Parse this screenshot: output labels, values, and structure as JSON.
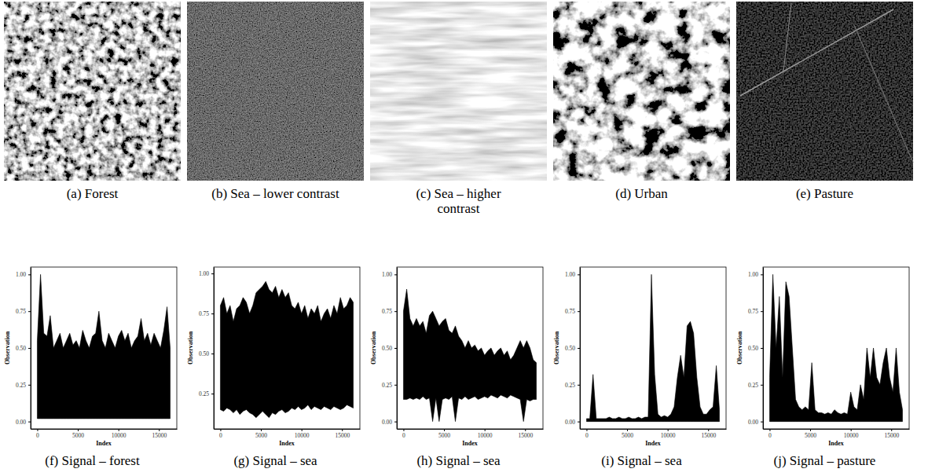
{
  "images": [
    {
      "caption": "(a) Forest"
    },
    {
      "caption": "(b) Sea – lower contrast"
    },
    {
      "caption": "(c) Sea – higher contrast"
    },
    {
      "caption": "(d) Urban"
    },
    {
      "caption": "(e) Pasture"
    }
  ],
  "chart_data": [
    {
      "type": "area",
      "title": "(f) Signal – forest",
      "x_label": "Index",
      "y_label": "Observation",
      "grid": false,
      "x": [
        0,
        400,
        800,
        1200,
        1600,
        2000,
        2400,
        2800,
        3200,
        3600,
        4000,
        4400,
        4800,
        5200,
        5600,
        6000,
        6400,
        6800,
        7200,
        7600,
        8000,
        8400,
        8800,
        9200,
        9600,
        10000,
        10400,
        10800,
        11200,
        11600,
        12000,
        12400,
        12800,
        13200,
        13600,
        14000,
        14400,
        14800,
        15200,
        15600,
        16000,
        16384
      ],
      "values": [
        0.55,
        1.0,
        0.6,
        0.58,
        0.72,
        0.5,
        0.55,
        0.6,
        0.5,
        0.55,
        0.6,
        0.52,
        0.55,
        0.5,
        0.62,
        0.55,
        0.5,
        0.58,
        0.6,
        0.75,
        0.55,
        0.5,
        0.6,
        0.55,
        0.5,
        0.58,
        0.62,
        0.55,
        0.6,
        0.5,
        0.55,
        0.58,
        0.7,
        0.55,
        0.6,
        0.52,
        0.6,
        0.55,
        0.5,
        0.62,
        0.78,
        0.5
      ],
      "lower": [
        0.02,
        0.02,
        0.02,
        0.02,
        0.02,
        0.02,
        0.02,
        0.02,
        0.02,
        0.02,
        0.02,
        0.02,
        0.02,
        0.02,
        0.02,
        0.02,
        0.02,
        0.02,
        0.02,
        0.02,
        0.02,
        0.02,
        0.02,
        0.02,
        0.02,
        0.02,
        0.02,
        0.02,
        0.02,
        0.02,
        0.02,
        0.02,
        0.02,
        0.02,
        0.02,
        0.02,
        0.02,
        0.02,
        0.02,
        0.02,
        0.02,
        0.02
      ],
      "xlim": [
        -819,
        17203
      ],
      "xticks": [
        0,
        5000,
        10000,
        15000
      ],
      "ylim": [
        -0.05,
        1.05
      ],
      "yticks": [
        {
          "value": 0,
          "label": "0.00"
        },
        {
          "value": 0.25,
          "label": "0.25"
        },
        {
          "value": 0.5,
          "label": "0.50"
        },
        {
          "value": 0.75,
          "label": "0.75"
        },
        {
          "value": 1,
          "label": "1.00"
        }
      ]
    },
    {
      "type": "area",
      "title": "(g) Signal – sea",
      "x_label": "Index",
      "y_label": "Observation",
      "grid": false,
      "x": [
        0,
        400,
        800,
        1200,
        1600,
        2000,
        2400,
        2800,
        3200,
        3600,
        4000,
        4400,
        4800,
        5200,
        5600,
        6000,
        6400,
        6800,
        7200,
        7600,
        8000,
        8400,
        8800,
        9200,
        9600,
        10000,
        10400,
        10800,
        11200,
        11600,
        12000,
        12400,
        12800,
        13200,
        13600,
        14000,
        14400,
        14800,
        15200,
        15600,
        16000,
        16384
      ],
      "values": [
        0.8,
        0.85,
        0.75,
        0.8,
        0.7,
        0.78,
        0.8,
        0.85,
        0.82,
        0.75,
        0.8,
        0.88,
        0.9,
        0.92,
        0.95,
        0.9,
        0.88,
        0.92,
        0.85,
        0.9,
        0.85,
        0.88,
        0.8,
        0.78,
        0.82,
        0.75,
        0.8,
        0.72,
        0.78,
        0.75,
        0.8,
        0.7,
        0.75,
        0.78,
        0.72,
        0.8,
        0.75,
        0.85,
        0.78,
        0.8,
        0.85,
        0.82
      ],
      "lower": [
        0.15,
        0.14,
        0.16,
        0.15,
        0.13,
        0.15,
        0.12,
        0.14,
        0.15,
        0.13,
        0.12,
        0.1,
        0.12,
        0.14,
        0.12,
        0.1,
        0.13,
        0.12,
        0.14,
        0.15,
        0.13,
        0.14,
        0.16,
        0.15,
        0.17,
        0.15,
        0.16,
        0.18,
        0.15,
        0.17,
        0.16,
        0.15,
        0.17,
        0.16,
        0.15,
        0.17,
        0.16,
        0.15,
        0.16,
        0.18,
        0.17,
        0.16
      ],
      "xlim": [
        -819,
        17203
      ],
      "xticks": [
        0,
        5000,
        10000,
        15000
      ],
      "ylim": [
        0.03,
        1.04
      ],
      "yticks": [
        {
          "value": 0.25,
          "label": "0.25"
        },
        {
          "value": 0.5,
          "label": "0.50"
        },
        {
          "value": 0.75,
          "label": "0.75"
        },
        {
          "value": 1,
          "label": "1.00"
        }
      ]
    },
    {
      "type": "area",
      "title": "(h) Signal – sea",
      "x_label": "Index",
      "y_label": "Observation",
      "grid": false,
      "x": [
        0,
        400,
        800,
        1200,
        1600,
        2000,
        2400,
        2800,
        3200,
        3600,
        4000,
        4400,
        4800,
        5200,
        5600,
        6000,
        6400,
        6800,
        7200,
        7600,
        8000,
        8400,
        8800,
        9200,
        9600,
        10000,
        10400,
        10800,
        11200,
        11600,
        12000,
        12400,
        12800,
        13200,
        13600,
        14000,
        14400,
        14800,
        15200,
        15600,
        16000,
        16384
      ],
      "values": [
        0.75,
        0.9,
        0.7,
        0.65,
        0.7,
        0.65,
        0.68,
        0.6,
        0.72,
        0.75,
        0.7,
        0.65,
        0.68,
        0.7,
        0.62,
        0.6,
        0.65,
        0.58,
        0.55,
        0.5,
        0.55,
        0.5,
        0.52,
        0.48,
        0.5,
        0.45,
        0.48,
        0.5,
        0.45,
        0.48,
        0.5,
        0.45,
        0.48,
        0.42,
        0.45,
        0.5,
        0.55,
        0.5,
        0.55,
        0.5,
        0.42,
        0.4
      ],
      "lower": [
        0.15,
        0.15,
        0.16,
        0.15,
        0.16,
        0.15,
        0.17,
        0.15,
        0.16,
        0.0,
        0.16,
        0.0,
        0.15,
        0.16,
        0.15,
        0.17,
        0.0,
        0.16,
        0.15,
        0.17,
        0.15,
        0.16,
        0.17,
        0.15,
        0.16,
        0.17,
        0.16,
        0.18,
        0.17,
        0.16,
        0.18,
        0.17,
        0.16,
        0.18,
        0.17,
        0.16,
        0.15,
        0.0,
        0.15,
        0.14,
        0.15,
        0.15
      ],
      "xlim": [
        -819,
        17203
      ],
      "xticks": [
        0,
        5000,
        10000,
        15000
      ],
      "ylim": [
        -0.05,
        1.05
      ],
      "yticks": [
        {
          "value": 0,
          "label": "0.00"
        },
        {
          "value": 0.25,
          "label": "0.25"
        },
        {
          "value": 0.5,
          "label": "0.50"
        },
        {
          "value": 0.75,
          "label": "0.75"
        },
        {
          "value": 1,
          "label": "1.00"
        }
      ]
    },
    {
      "type": "area",
      "title": "(i) Signal – sea",
      "x_label": "Index",
      "y_label": "Observation",
      "grid": false,
      "x": [
        0,
        400,
        800,
        1200,
        1600,
        2000,
        2400,
        2800,
        3200,
        3600,
        4000,
        4400,
        4800,
        5200,
        5600,
        6000,
        6400,
        6800,
        7200,
        7600,
        8000,
        8400,
        8800,
        9200,
        9600,
        10000,
        10400,
        10800,
        11200,
        11600,
        12000,
        12400,
        12800,
        13200,
        13600,
        14000,
        14400,
        14800,
        15200,
        15600,
        16000,
        16384
      ],
      "values": [
        0.02,
        0.02,
        0.32,
        0.02,
        0.02,
        0.02,
        0.02,
        0.03,
        0.02,
        0.02,
        0.03,
        0.02,
        0.02,
        0.03,
        0.02,
        0.02,
        0.03,
        0.02,
        0.03,
        0.03,
        1.0,
        0.32,
        0.05,
        0.03,
        0.04,
        0.03,
        0.05,
        0.1,
        0.3,
        0.45,
        0.3,
        0.65,
        0.68,
        0.6,
        0.3,
        0.1,
        0.05,
        0.05,
        0.08,
        0.1,
        0.38,
        0.08
      ],
      "lower": [
        0,
        0,
        0,
        0,
        0,
        0,
        0,
        0,
        0,
        0,
        0,
        0,
        0,
        0,
        0,
        0,
        0,
        0,
        0,
        0,
        0,
        0,
        0,
        0,
        0,
        0,
        0,
        0,
        0,
        0,
        0,
        0,
        0,
        0,
        0,
        0,
        0,
        0,
        0,
        0,
        0,
        0
      ],
      "xlim": [
        -819,
        17203
      ],
      "xticks": [
        0,
        5000,
        10000,
        15000
      ],
      "ylim": [
        -0.05,
        1.05
      ],
      "yticks": [
        {
          "value": 0,
          "label": "0.00"
        },
        {
          "value": 0.25,
          "label": "0.25"
        },
        {
          "value": 0.5,
          "label": "0.50"
        },
        {
          "value": 0.75,
          "label": "0.75"
        },
        {
          "value": 1,
          "label": "1.00"
        }
      ]
    },
    {
      "type": "area",
      "title": "(j) Signal – pasture",
      "x_label": "Index",
      "y_label": "Observation",
      "grid": false,
      "x": [
        0,
        400,
        800,
        1200,
        1600,
        2000,
        2400,
        2800,
        3200,
        3600,
        4000,
        4400,
        4800,
        5200,
        5600,
        6000,
        6400,
        6800,
        7200,
        7600,
        8000,
        8400,
        8800,
        9200,
        9600,
        10000,
        10400,
        10800,
        11200,
        11600,
        12000,
        12400,
        12800,
        13200,
        13600,
        14000,
        14400,
        14800,
        15200,
        15600,
        16000,
        16384
      ],
      "values": [
        0.3,
        1.0,
        0.5,
        0.85,
        0.3,
        0.95,
        0.85,
        0.5,
        0.15,
        0.1,
        0.08,
        0.1,
        0.08,
        0.4,
        0.08,
        0.06,
        0.06,
        0.05,
        0.06,
        0.05,
        0.08,
        0.06,
        0.05,
        0.06,
        0.05,
        0.2,
        0.1,
        0.08,
        0.25,
        0.15,
        0.5,
        0.3,
        0.5,
        0.3,
        0.25,
        0.4,
        0.5,
        0.3,
        0.2,
        0.5,
        0.2,
        0.08
      ],
      "lower": [
        0,
        0,
        0,
        0,
        0,
        0,
        0,
        0,
        0,
        0,
        0,
        0,
        0,
        0,
        0,
        0,
        0,
        0,
        0,
        0,
        0,
        0,
        0,
        0,
        0,
        0,
        0,
        0,
        0,
        0,
        0,
        0,
        0,
        0,
        0,
        0,
        0,
        0,
        0,
        0,
        0,
        0
      ],
      "xlim": [
        -819,
        17203
      ],
      "xticks": [
        0,
        5000,
        10000,
        15000
      ],
      "ylim": [
        -0.05,
        1.05
      ],
      "yticks": [
        {
          "value": 0,
          "label": "0.00"
        },
        {
          "value": 0.25,
          "label": "0.25"
        },
        {
          "value": 0.5,
          "label": "0.50"
        },
        {
          "value": 0.75,
          "label": "0.75"
        },
        {
          "value": 1,
          "label": "1.00"
        }
      ]
    }
  ]
}
